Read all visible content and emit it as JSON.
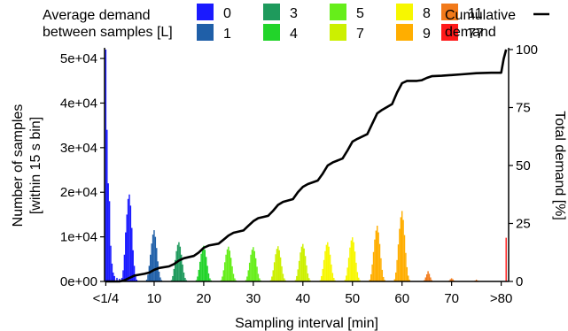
{
  "chart_data": {
    "type": "bar",
    "xlabel": "Sampling interval [min]",
    "ylabel_lines": [
      "Number of samples",
      "[within 15 s bin]"
    ],
    "y2label": "Total demand [%]",
    "x_range": [
      0,
      81.5
    ],
    "ylim": [
      0,
      52000
    ],
    "y2lim": [
      0,
      100
    ],
    "x_ticks": [
      {
        "value": 0.25,
        "label": "<1/4"
      },
      {
        "value": 10,
        "label": "10"
      },
      {
        "value": 20,
        "label": "20"
      },
      {
        "value": 30,
        "label": "30"
      },
      {
        "value": 40,
        "label": "40"
      },
      {
        "value": 50,
        "label": "50"
      },
      {
        "value": 60,
        "label": "60"
      },
      {
        "value": 70,
        "label": "70"
      },
      {
        "value": 80,
        "label": ">80"
      }
    ],
    "y_ticks": [
      {
        "value": 0,
        "label": "0e+00"
      },
      {
        "value": 10000,
        "label": "1e+04"
      },
      {
        "value": 20000,
        "label": "2e+04"
      },
      {
        "value": 30000,
        "label": "3e+04"
      },
      {
        "value": 40000,
        "label": "4e+04"
      },
      {
        "value": 50000,
        "label": "5e+04"
      }
    ],
    "y2_ticks": [
      {
        "value": 0,
        "label": "0"
      },
      {
        "value": 25,
        "label": "25"
      },
      {
        "value": 50,
        "label": "50"
      },
      {
        "value": 75,
        "label": "75"
      },
      {
        "value": 100,
        "label": "100"
      }
    ],
    "legend": {
      "title_lines": [
        "Average demand",
        "between samples [L]"
      ],
      "placement": "top",
      "items": [
        {
          "label": "0",
          "color": "#1a1aff"
        },
        {
          "label": "1",
          "color": "#1f5fa8"
        },
        {
          "label": "3",
          "color": "#1e9a5c"
        },
        {
          "label": "4",
          "color": "#22d42a"
        },
        {
          "label": "5",
          "color": "#66ee1a"
        },
        {
          "label": "7",
          "color": "#ccf000"
        },
        {
          "label": "8",
          "color": "#f7f700"
        },
        {
          "label": "9",
          "color": "#ffae00"
        },
        {
          "label": "11",
          "color": "#f27a1a"
        },
        {
          "label": "77",
          "color": "#ff1a1a"
        }
      ],
      "line_label_lines": [
        "Cumulative",
        "demand"
      ]
    },
    "histogram_series": [
      {
        "name": "0",
        "color": "#1a1aff",
        "x": [
          0.25,
          0.5,
          0.75,
          1.0,
          1.25,
          1.5,
          1.75,
          2.0,
          2.5,
          3.0,
          3.5,
          4.0
        ],
        "values": [
          52000,
          34000,
          22000,
          18000,
          8000,
          4000,
          2000,
          1200,
          800,
          600,
          500,
          400
        ]
      },
      {
        "name": "0",
        "color": "#1a1aff",
        "x": [
          3.5,
          3.75,
          4.0,
          4.25,
          4.5,
          4.75,
          5.0,
          5.25,
          5.5,
          5.75,
          6.0,
          6.25,
          6.5
        ],
        "values": [
          800,
          2500,
          6000,
          11000,
          15000,
          18500,
          19500,
          17000,
          12000,
          7000,
          3500,
          1200,
          400
        ]
      },
      {
        "name": "1",
        "color": "#1f5fa8",
        "x": [
          8.5,
          8.75,
          9.0,
          9.25,
          9.5,
          9.75,
          10.0,
          10.25,
          10.5,
          10.75,
          11.0,
          11.25,
          11.5
        ],
        "values": [
          400,
          1500,
          3500,
          6000,
          8500,
          10500,
          11500,
          10000,
          7500,
          4500,
          2200,
          900,
          300
        ]
      },
      {
        "name": "3",
        "color": "#1e9a5c",
        "x": [
          13.5,
          13.75,
          14.0,
          14.25,
          14.5,
          14.75,
          15.0,
          15.25,
          15.5,
          15.75,
          16.0,
          16.25,
          16.5
        ],
        "values": [
          300,
          1200,
          2800,
          4800,
          6800,
          8200,
          8800,
          7800,
          6000,
          3800,
          2000,
          800,
          300
        ]
      },
      {
        "name": "4",
        "color": "#22d42a",
        "x": [
          18.5,
          18.75,
          19.0,
          19.25,
          19.5,
          19.75,
          20.0,
          20.25,
          20.5,
          20.75,
          21.0,
          21.25,
          21.5
        ],
        "values": [
          300,
          1100,
          2600,
          4400,
          6200,
          7400,
          8000,
          7100,
          5500,
          3500,
          1800,
          700,
          250
        ]
      },
      {
        "name": "5",
        "color": "#66ee1a",
        "x": [
          23.5,
          23.75,
          24.0,
          24.25,
          24.5,
          24.75,
          25.0,
          25.25,
          25.5,
          25.75,
          26.0,
          26.25,
          26.5
        ],
        "values": [
          300,
          1100,
          2500,
          4300,
          6000,
          7200,
          7800,
          6900,
          5300,
          3400,
          1700,
          700,
          250
        ]
      },
      {
        "name": "5",
        "color": "#66ee1a",
        "x": [
          28.5,
          28.75,
          29.0,
          29.25,
          29.5,
          29.75,
          30.0,
          30.25,
          30.5,
          30.75,
          31.0,
          31.25,
          31.5
        ],
        "values": [
          300,
          1100,
          2500,
          4200,
          6000,
          7100,
          7700,
          6800,
          5200,
          3300,
          1700,
          700,
          250
        ]
      },
      {
        "name": "7",
        "color": "#ccf000",
        "x": [
          33.5,
          33.75,
          34.0,
          34.25,
          34.5,
          34.75,
          35.0,
          35.25,
          35.5,
          35.75,
          36.0,
          36.25,
          36.5
        ],
        "values": [
          300,
          1100,
          2500,
          4300,
          6100,
          7300,
          7900,
          7000,
          5400,
          3400,
          1700,
          700,
          250
        ]
      },
      {
        "name": "7",
        "color": "#ccf000",
        "x": [
          38.5,
          38.75,
          39.0,
          39.25,
          39.5,
          39.75,
          40.0,
          40.25,
          40.5,
          40.75,
          41.0,
          41.25,
          41.5
        ],
        "values": [
          300,
          1200,
          2700,
          4600,
          6500,
          7800,
          8400,
          7400,
          5700,
          3600,
          1800,
          750,
          250
        ]
      },
      {
        "name": "8",
        "color": "#f7f700",
        "x": [
          43.5,
          43.75,
          44.0,
          44.25,
          44.5,
          44.75,
          45.0,
          45.25,
          45.5,
          45.75,
          46.0,
          46.25,
          46.5
        ],
        "values": [
          300,
          1200,
          2800,
          4800,
          6800,
          8200,
          8800,
          7800,
          6000,
          3800,
          1900,
          800,
          250
        ]
      },
      {
        "name": "8",
        "color": "#f7f700",
        "x": [
          48.5,
          48.75,
          49.0,
          49.25,
          49.5,
          49.75,
          50.0,
          50.25,
          50.5,
          50.75,
          51.0,
          51.25,
          51.5
        ],
        "values": [
          350,
          1300,
          3100,
          5300,
          7600,
          9200,
          9900,
          8800,
          6700,
          4200,
          2100,
          850,
          300
        ]
      },
      {
        "name": "9",
        "color": "#ffae00",
        "x": [
          53.5,
          53.75,
          54.0,
          54.25,
          54.5,
          54.75,
          55.0,
          55.25,
          55.5,
          55.75,
          56.0,
          56.25,
          56.5
        ],
        "values": [
          400,
          1600,
          3800,
          6600,
          9400,
          11400,
          12500,
          11000,
          8400,
          5200,
          2600,
          1000,
          350
        ]
      },
      {
        "name": "9",
        "color": "#ffae00",
        "x": [
          58.5,
          58.75,
          59.0,
          59.25,
          59.5,
          59.75,
          60.0,
          60.25,
          60.5,
          60.75,
          61.0,
          61.25,
          61.5
        ],
        "values": [
          500,
          2000,
          4800,
          8300,
          11800,
          14400,
          15800,
          13800,
          10400,
          6400,
          3200,
          1300,
          400
        ]
      },
      {
        "name": "11",
        "color": "#f27a1a",
        "x": [
          64.5,
          64.75,
          65.0,
          65.25,
          65.5,
          65.75,
          66.0
        ],
        "values": [
          300,
          900,
          1600,
          2300,
          1700,
          900,
          300
        ]
      },
      {
        "name": "11",
        "color": "#f27a1a",
        "x": [
          69.5,
          69.75,
          70.0,
          70.25,
          70.5
        ],
        "values": [
          200,
          500,
          700,
          500,
          200
        ]
      },
      {
        "name": "11",
        "color": "#f27a1a",
        "x": [
          74.75,
          75.0,
          75.25
        ],
        "values": [
          200,
          400,
          200
        ]
      },
      {
        "name": "77",
        "color": "#ff1a1a",
        "x": [
          81.0
        ],
        "values": [
          9800
        ]
      }
    ],
    "cumulative_line": {
      "name": "Cumulative demand",
      "axis": "right",
      "color": "#000000",
      "x": [
        0.25,
        3,
        4,
        5,
        6,
        8,
        9,
        10,
        11,
        13,
        14,
        15,
        16,
        18,
        19,
        20,
        21,
        23,
        24,
        25,
        26,
        28,
        29,
        30,
        31,
        33,
        34,
        35,
        36,
        38,
        39,
        40,
        41,
        43,
        44,
        45,
        46,
        48,
        49,
        50,
        51,
        53,
        54,
        55,
        56,
        58,
        59,
        60,
        61,
        63,
        64,
        65,
        66,
        68,
        70,
        72,
        75,
        78,
        80,
        80.5,
        81
      ],
      "values": [
        0,
        0,
        0.5,
        1.5,
        2.5,
        3.3,
        3.8,
        5.0,
        5.8,
        6.5,
        7.5,
        9.0,
        10.0,
        11.0,
        12.5,
        14.5,
        15.5,
        16.3,
        18.0,
        19.8,
        21.0,
        22.0,
        24.0,
        26.0,
        27.3,
        28.3,
        30.5,
        33.0,
        34.3,
        35.5,
        38.5,
        40.8,
        42.0,
        43.5,
        46.5,
        50.0,
        51.3,
        53.0,
        56.5,
        60.3,
        61.5,
        63.5,
        68.0,
        72.5,
        74.0,
        76.5,
        81.5,
        85.5,
        86.5,
        86.5,
        86.8,
        87.8,
        88.5,
        88.7,
        89.0,
        89.3,
        89.8,
        90.0,
        90.0,
        96.0,
        100.0
      ]
    }
  }
}
